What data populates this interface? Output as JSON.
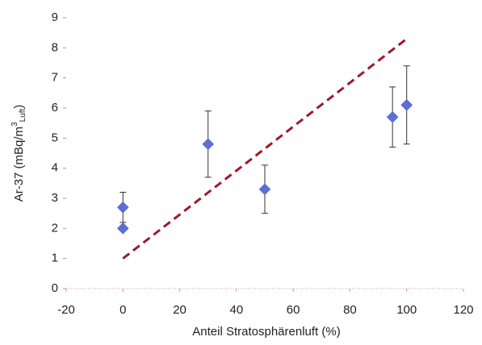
{
  "chart_data": {
    "type": "scatter",
    "x_label": "Anteil Stratosphärenluft (%)",
    "y_label": {
      "main": "Ar-37 (mBq/m",
      "sup": "3",
      "sub": "Luft",
      "end": ")"
    },
    "xlim": [
      -20,
      120
    ],
    "xticks": [
      -20,
      0,
      20,
      40,
      60,
      80,
      100,
      120
    ],
    "ylim": [
      0,
      9
    ],
    "yticks": [
      0,
      1,
      2,
      3,
      4,
      5,
      6,
      7,
      8,
      9
    ],
    "series": [
      {
        "color": "#5b6fd6",
        "x": [
          0,
          0,
          30,
          50,
          95,
          100
        ],
        "values": [
          2.0,
          2.7,
          4.8,
          3.3,
          5.7,
          6.1
        ],
        "errors": [
          null,
          0.5,
          1.1,
          0.8,
          1.0,
          1.3
        ]
      }
    ],
    "trend_line": {
      "color": "#9b1b2a",
      "x": [
        0,
        100
      ],
      "values": [
        1.0,
        8.3
      ]
    }
  }
}
